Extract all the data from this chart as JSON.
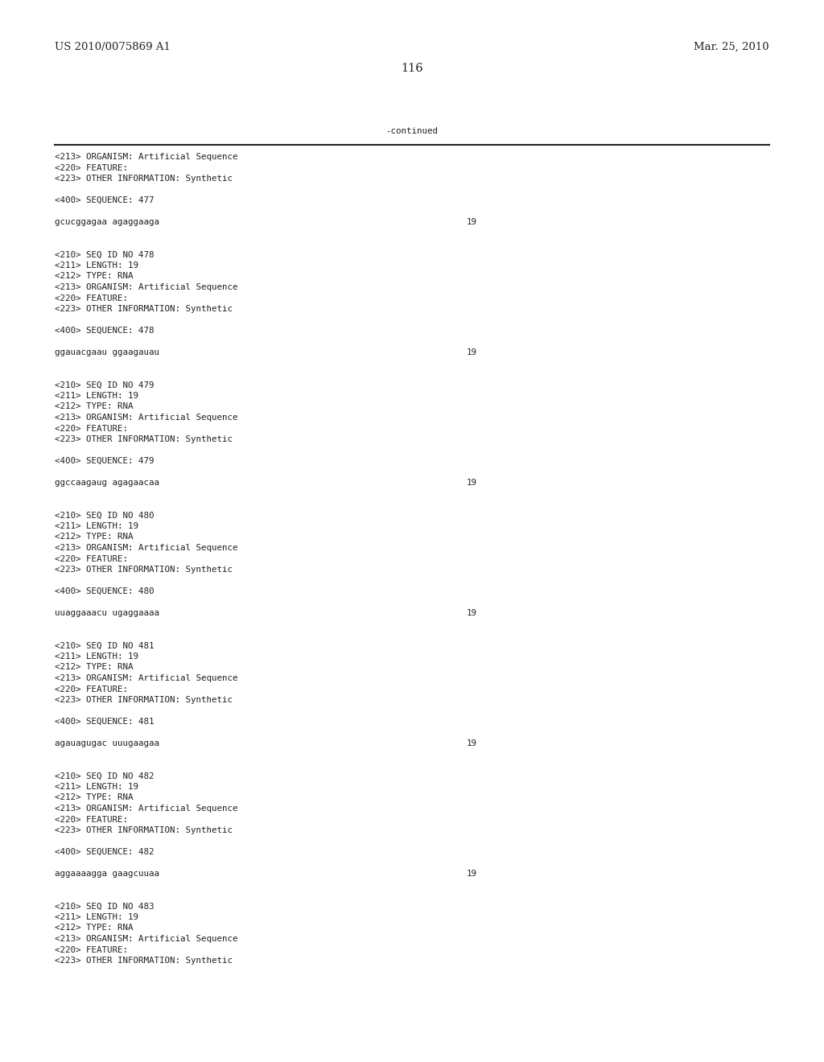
{
  "header_left": "US 2010/0075869 A1",
  "header_right": "Mar. 25, 2010",
  "page_number": "116",
  "continued_label": "-continued",
  "bg_color": "#ffffff",
  "text_color": "#231f20",
  "font_size_header": 9.5,
  "font_size_body": 7.8,
  "font_size_page": 10.5,
  "lines": [
    {
      "text": "<213> ORGANISM: Artificial Sequence",
      "type": "meta"
    },
    {
      "text": "<220> FEATURE:",
      "type": "meta"
    },
    {
      "text": "<223> OTHER INFORMATION: Synthetic",
      "type": "meta"
    },
    {
      "text": "",
      "type": "blank"
    },
    {
      "text": "<400> SEQUENCE: 477",
      "type": "meta"
    },
    {
      "text": "",
      "type": "blank"
    },
    {
      "text": "gcucggagaa agaggaaga",
      "type": "seq",
      "num": "19"
    },
    {
      "text": "",
      "type": "blank"
    },
    {
      "text": "",
      "type": "blank"
    },
    {
      "text": "<210> SEQ ID NO 478",
      "type": "meta"
    },
    {
      "text": "<211> LENGTH: 19",
      "type": "meta"
    },
    {
      "text": "<212> TYPE: RNA",
      "type": "meta"
    },
    {
      "text": "<213> ORGANISM: Artificial Sequence",
      "type": "meta"
    },
    {
      "text": "<220> FEATURE:",
      "type": "meta"
    },
    {
      "text": "<223> OTHER INFORMATION: Synthetic",
      "type": "meta"
    },
    {
      "text": "",
      "type": "blank"
    },
    {
      "text": "<400> SEQUENCE: 478",
      "type": "meta"
    },
    {
      "text": "",
      "type": "blank"
    },
    {
      "text": "ggauacgaau ggaagauau",
      "type": "seq",
      "num": "19"
    },
    {
      "text": "",
      "type": "blank"
    },
    {
      "text": "",
      "type": "blank"
    },
    {
      "text": "<210> SEQ ID NO 479",
      "type": "meta"
    },
    {
      "text": "<211> LENGTH: 19",
      "type": "meta"
    },
    {
      "text": "<212> TYPE: RNA",
      "type": "meta"
    },
    {
      "text": "<213> ORGANISM: Artificial Sequence",
      "type": "meta"
    },
    {
      "text": "<220> FEATURE:",
      "type": "meta"
    },
    {
      "text": "<223> OTHER INFORMATION: Synthetic",
      "type": "meta"
    },
    {
      "text": "",
      "type": "blank"
    },
    {
      "text": "<400> SEQUENCE: 479",
      "type": "meta"
    },
    {
      "text": "",
      "type": "blank"
    },
    {
      "text": "ggccaagaug agagaacaa",
      "type": "seq",
      "num": "19"
    },
    {
      "text": "",
      "type": "blank"
    },
    {
      "text": "",
      "type": "blank"
    },
    {
      "text": "<210> SEQ ID NO 480",
      "type": "meta"
    },
    {
      "text": "<211> LENGTH: 19",
      "type": "meta"
    },
    {
      "text": "<212> TYPE: RNA",
      "type": "meta"
    },
    {
      "text": "<213> ORGANISM: Artificial Sequence",
      "type": "meta"
    },
    {
      "text": "<220> FEATURE:",
      "type": "meta"
    },
    {
      "text": "<223> OTHER INFORMATION: Synthetic",
      "type": "meta"
    },
    {
      "text": "",
      "type": "blank"
    },
    {
      "text": "<400> SEQUENCE: 480",
      "type": "meta"
    },
    {
      "text": "",
      "type": "blank"
    },
    {
      "text": "uuaggaaacu ugaggaaaa",
      "type": "seq",
      "num": "19"
    },
    {
      "text": "",
      "type": "blank"
    },
    {
      "text": "",
      "type": "blank"
    },
    {
      "text": "<210> SEQ ID NO 481",
      "type": "meta"
    },
    {
      "text": "<211> LENGTH: 19",
      "type": "meta"
    },
    {
      "text": "<212> TYPE: RNA",
      "type": "meta"
    },
    {
      "text": "<213> ORGANISM: Artificial Sequence",
      "type": "meta"
    },
    {
      "text": "<220> FEATURE:",
      "type": "meta"
    },
    {
      "text": "<223> OTHER INFORMATION: Synthetic",
      "type": "meta"
    },
    {
      "text": "",
      "type": "blank"
    },
    {
      "text": "<400> SEQUENCE: 481",
      "type": "meta"
    },
    {
      "text": "",
      "type": "blank"
    },
    {
      "text": "agauagugac uuugaagaa",
      "type": "seq",
      "num": "19"
    },
    {
      "text": "",
      "type": "blank"
    },
    {
      "text": "",
      "type": "blank"
    },
    {
      "text": "<210> SEQ ID NO 482",
      "type": "meta"
    },
    {
      "text": "<211> LENGTH: 19",
      "type": "meta"
    },
    {
      "text": "<212> TYPE: RNA",
      "type": "meta"
    },
    {
      "text": "<213> ORGANISM: Artificial Sequence",
      "type": "meta"
    },
    {
      "text": "<220> FEATURE:",
      "type": "meta"
    },
    {
      "text": "<223> OTHER INFORMATION: Synthetic",
      "type": "meta"
    },
    {
      "text": "",
      "type": "blank"
    },
    {
      "text": "<400> SEQUENCE: 482",
      "type": "meta"
    },
    {
      "text": "",
      "type": "blank"
    },
    {
      "text": "aggaaaagga gaagcuuaa",
      "type": "seq",
      "num": "19"
    },
    {
      "text": "",
      "type": "blank"
    },
    {
      "text": "",
      "type": "blank"
    },
    {
      "text": "<210> SEQ ID NO 483",
      "type": "meta"
    },
    {
      "text": "<211> LENGTH: 19",
      "type": "meta"
    },
    {
      "text": "<212> TYPE: RNA",
      "type": "meta"
    },
    {
      "text": "<213> ORGANISM: Artificial Sequence",
      "type": "meta"
    },
    {
      "text": "<220> FEATURE:",
      "type": "meta"
    },
    {
      "text": "<223> OTHER INFORMATION: Synthetic",
      "type": "meta"
    }
  ]
}
